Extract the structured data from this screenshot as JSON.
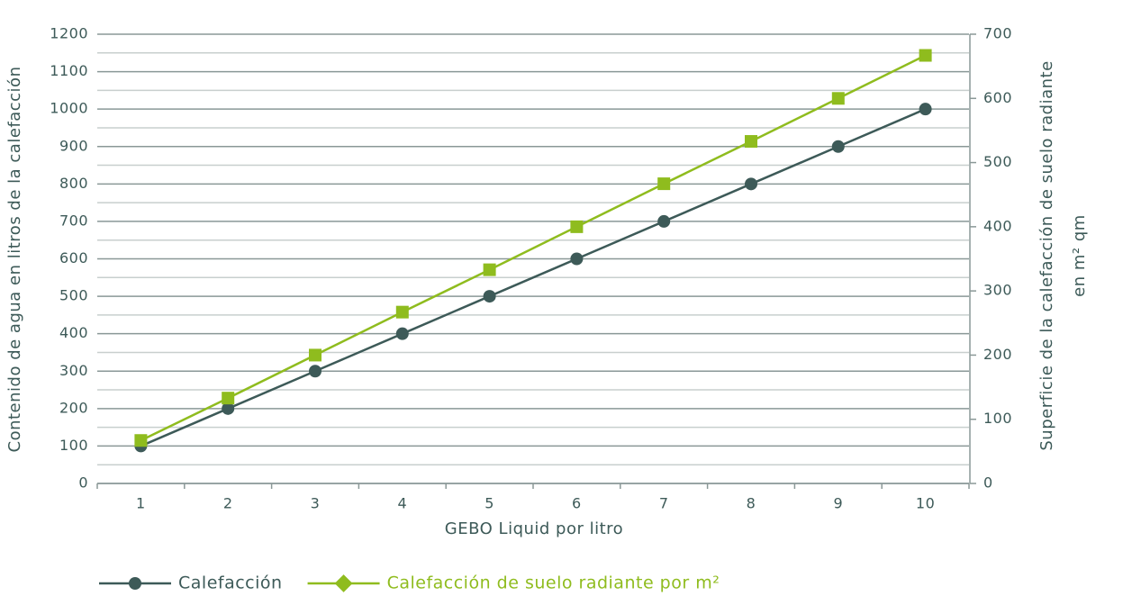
{
  "chart_data": {
    "type": "line",
    "xlabel": "GEBO Liquid por litro",
    "ylabel": "Contenido de agua en litros de la calefacción",
    "y2label": [
      "Superficie de la calefacción de suelo radiante",
      "en m² qm"
    ],
    "categories": [
      "1",
      "2",
      "3",
      "4",
      "5",
      "6",
      "7",
      "8",
      "9",
      "10"
    ],
    "series": [
      {
        "name": "Calefacción",
        "color": "#3d5a58",
        "marker": "circle",
        "values": [
          100,
          200,
          300,
          400,
          500,
          600,
          700,
          800,
          900,
          1000
        ]
      },
      {
        "name": "Calefacción de suelo radiante por m²",
        "color": "#8fbc1e",
        "marker": "square",
        "axis": "y2",
        "values": [
          67,
          133,
          200,
          267,
          333,
          400,
          467,
          533,
          600,
          667
        ]
      }
    ],
    "ylim": [
      0,
      1200
    ],
    "yticks": [
      0,
      100,
      200,
      300,
      400,
      500,
      600,
      700,
      800,
      900,
      1000,
      1100,
      1200
    ],
    "y2lim": [
      0,
      700
    ],
    "y2ticks": [
      0,
      100,
      200,
      300,
      400,
      500,
      600,
      700
    ],
    "grid": true,
    "minor_grid": true,
    "legend": "bottom-left"
  }
}
